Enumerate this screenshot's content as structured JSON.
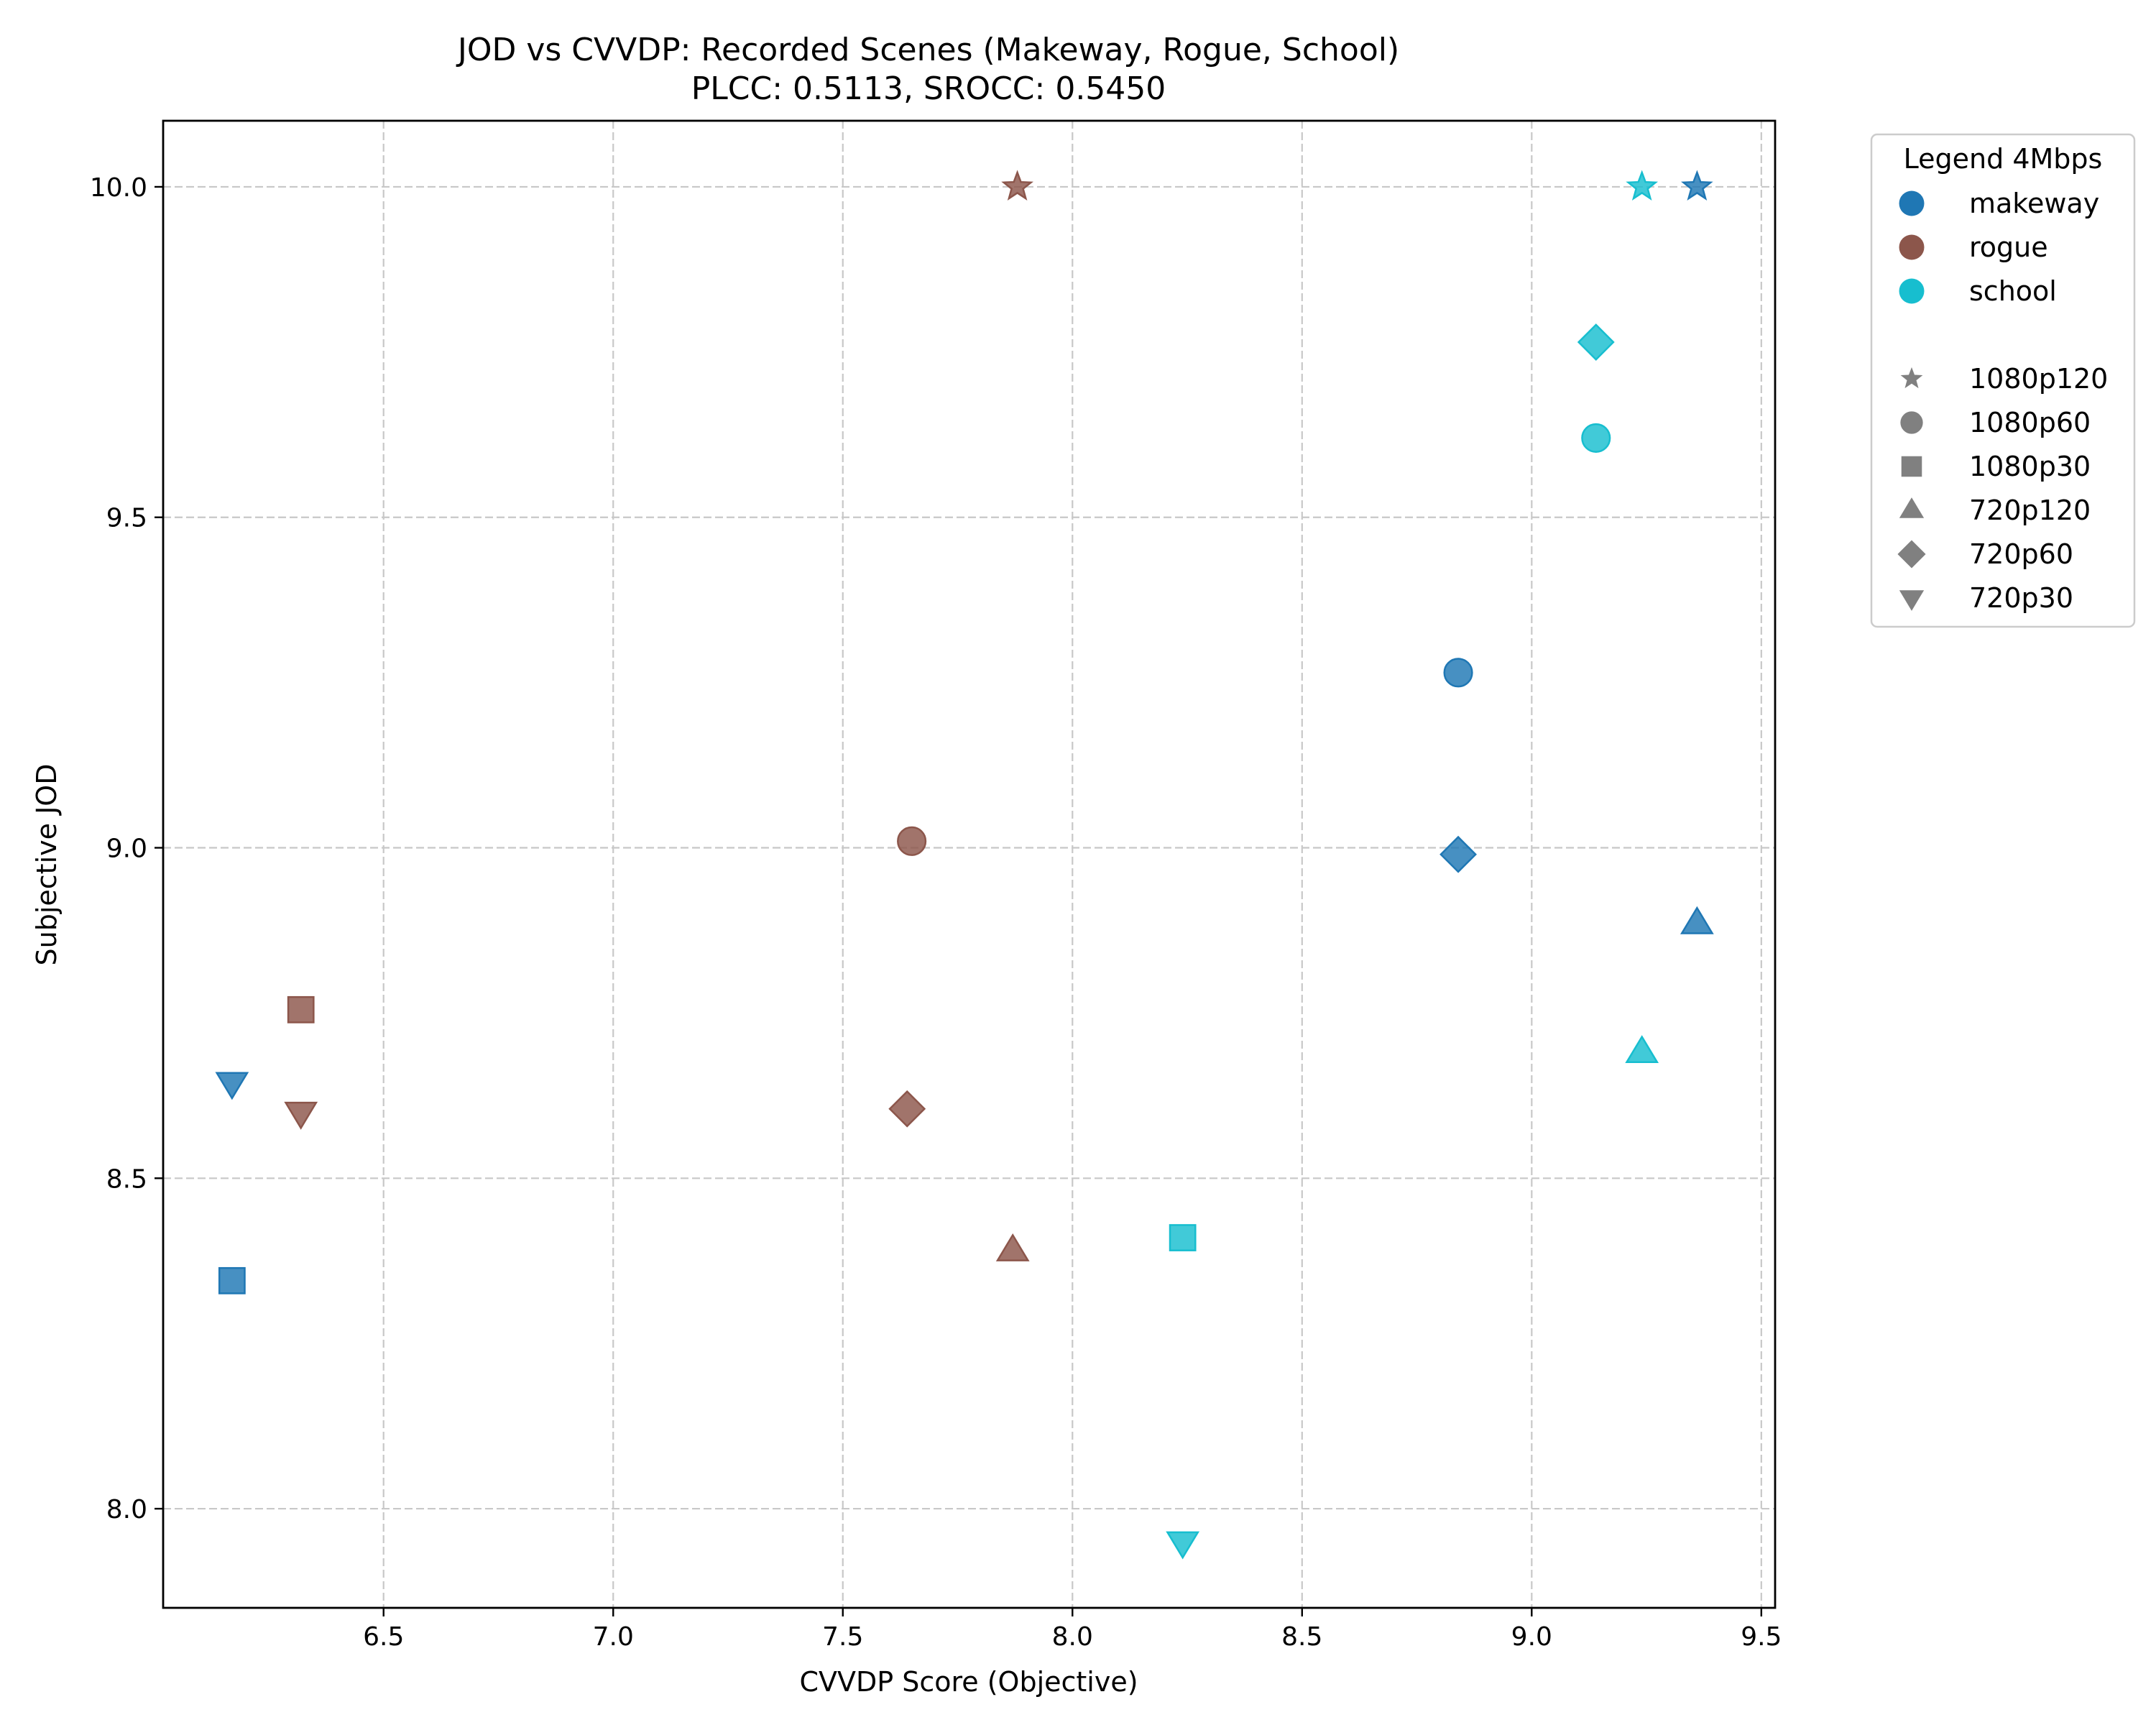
{
  "chart_data": {
    "type": "scatter",
    "title": "JOD vs CVVDP: Recorded Scenes (Makeway, Rogue, School)",
    "subtitle": "PLCC: 0.5113, SROCC: 0.5450",
    "xlabel": "CVVDP Score (Objective)",
    "ylabel": "Subjective JOD",
    "xlim": [
      6.02,
      9.53
    ],
    "ylim": [
      7.85,
      10.1
    ],
    "x_ticks": [
      "6.5",
      "7.0",
      "7.5",
      "8.0",
      "8.5",
      "9.0",
      "9.5"
    ],
    "y_ticks": [
      "8.0",
      "8.5",
      "9.0",
      "9.5",
      "10.0"
    ],
    "grid": true,
    "legend": {
      "title": "Legend 4Mbps",
      "placement": "outside-top-right",
      "scenes": [
        {
          "name": "makeway",
          "color": "#1f77b4"
        },
        {
          "name": "rogue",
          "color": "#8c564b"
        },
        {
          "name": "school",
          "color": "#17becf"
        }
      ],
      "formats": [
        {
          "name": "1080p120",
          "marker": "star"
        },
        {
          "name": "1080p60",
          "marker": "circle"
        },
        {
          "name": "1080p30",
          "marker": "square"
        },
        {
          "name": "720p120",
          "marker": "triangle-up"
        },
        {
          "name": "720p60",
          "marker": "diamond"
        },
        {
          "name": "720p30",
          "marker": "triangle-down"
        }
      ],
      "marker_color": "#808080"
    },
    "series": [
      {
        "name": "makeway",
        "color": "#1f77b4",
        "points": [
          {
            "format": "1080p120",
            "x": 9.36,
            "y": 10.0
          },
          {
            "format": "1080p60",
            "x": 8.84,
            "y": 9.265
          },
          {
            "format": "1080p30",
            "x": 6.17,
            "y": 8.345
          },
          {
            "format": "720p120",
            "x": 9.36,
            "y": 8.885
          },
          {
            "format": "720p60",
            "x": 8.84,
            "y": 8.99
          },
          {
            "format": "720p30",
            "x": 6.17,
            "y": 8.645
          }
        ]
      },
      {
        "name": "rogue",
        "color": "#8c564b",
        "points": [
          {
            "format": "1080p120",
            "x": 7.88,
            "y": 10.0
          },
          {
            "format": "1080p60",
            "x": 7.65,
            "y": 9.01
          },
          {
            "format": "1080p30",
            "x": 6.32,
            "y": 8.755
          },
          {
            "format": "720p120",
            "x": 7.87,
            "y": 8.39
          },
          {
            "format": "720p60",
            "x": 7.64,
            "y": 8.605
          },
          {
            "format": "720p30",
            "x": 6.32,
            "y": 8.6
          }
        ]
      },
      {
        "name": "school",
        "color": "#17becf",
        "points": [
          {
            "format": "1080p120",
            "x": 9.24,
            "y": 10.0
          },
          {
            "format": "1080p60",
            "x": 9.14,
            "y": 9.62
          },
          {
            "format": "1080p30",
            "x": 8.24,
            "y": 8.41
          },
          {
            "format": "720p120",
            "x": 9.24,
            "y": 8.69
          },
          {
            "format": "720p60",
            "x": 9.14,
            "y": 9.765
          },
          {
            "format": "720p30",
            "x": 8.24,
            "y": 7.95
          }
        ]
      }
    ]
  }
}
